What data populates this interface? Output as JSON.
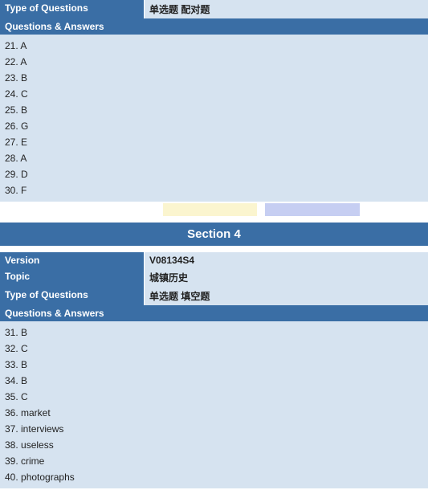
{
  "colors": {
    "header_bg": "#3a6ea5",
    "header_text": "#ffffff",
    "body_bg": "#d6e3f0",
    "body_text": "#222222",
    "sep_yellow": "#fbf5cf",
    "sep_blue": "#c6cef2",
    "page_bg": "#ffffff"
  },
  "top": {
    "type_label": "Type of Questions",
    "type_value": "单选题 配对题",
    "qa_label": "Questions & Answers",
    "answers": [
      {
        "num": "21.",
        "ans": "A"
      },
      {
        "num": "22.",
        "ans": "A"
      },
      {
        "num": "23.",
        "ans": "B"
      },
      {
        "num": "24.",
        "ans": "C"
      },
      {
        "num": "25.",
        "ans": "B"
      },
      {
        "num": "26.",
        "ans": "G"
      },
      {
        "num": "27.",
        "ans": "E"
      },
      {
        "num": "28.",
        "ans": "A"
      },
      {
        "num": "29.",
        "ans": "D"
      },
      {
        "num": "30.",
        "ans": "F"
      }
    ]
  },
  "separator": {
    "segments": [
      {
        "color": "#ffffff",
        "width": "38%"
      },
      {
        "color": "#fbf5cf",
        "width": "22%"
      },
      {
        "color": "#ffffff",
        "width": "2%"
      },
      {
        "color": "#c6cef2",
        "width": "22%"
      },
      {
        "color": "#ffffff",
        "width": "16%"
      }
    ]
  },
  "section4": {
    "title": "Section 4",
    "version_label": "Version",
    "version_value": "V08134S4",
    "topic_label": "Topic",
    "topic_value": "城镇历史",
    "type_label": "Type of Questions",
    "type_value": "单选题 填空题",
    "qa_label": "Questions & Answers",
    "answers": [
      {
        "num": "31.",
        "ans": "B"
      },
      {
        "num": "32.",
        "ans": "C"
      },
      {
        "num": "33.",
        "ans": "B"
      },
      {
        "num": "34.",
        "ans": "B"
      },
      {
        "num": "35.",
        "ans": "C"
      },
      {
        "num": "36.",
        "ans": "market"
      },
      {
        "num": "37.",
        "ans": "interviews"
      },
      {
        "num": "38.",
        "ans": "useless"
      },
      {
        "num": "39.",
        "ans": "crime"
      },
      {
        "num": "40.",
        "ans": "photographs"
      }
    ]
  }
}
